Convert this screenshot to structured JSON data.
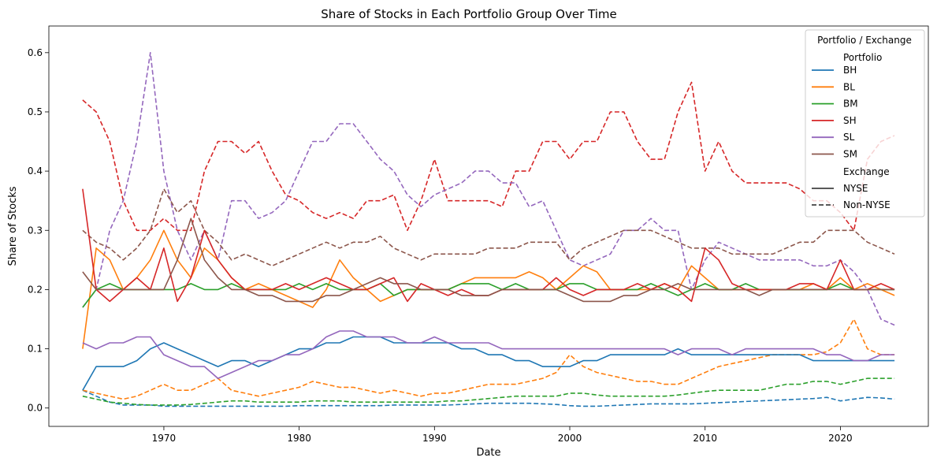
{
  "chart_data": {
    "type": "line",
    "title": "Share of Stocks in Each Portfolio Group Over Time",
    "xlabel": "Date",
    "ylabel": "Share of Stocks",
    "xlim": [
      1961.5,
      2026.5
    ],
    "ylim": [
      -0.031,
      0.645
    ],
    "x_ticks": [
      1970,
      1980,
      1990,
      2000,
      2010,
      2020
    ],
    "y_ticks": [
      0.0,
      0.1,
      0.2,
      0.3,
      0.4,
      0.5,
      0.6
    ],
    "y_tick_labels": [
      "0.0",
      "0.1",
      "0.2",
      "0.3",
      "0.4",
      "0.5",
      "0.6"
    ],
    "grid": false,
    "legend": {
      "placement": "top-right",
      "title": "Portfolio / Exchange",
      "portfolio_header": "Portfolio",
      "exchange_header": "Exchange",
      "exchange_entries": [
        {
          "name": "NYSE",
          "style": "solid"
        },
        {
          "name": "Non-NYSE",
          "style": "dashed"
        }
      ]
    },
    "x": [
      1964,
      1965,
      1966,
      1967,
      1968,
      1969,
      1970,
      1971,
      1972,
      1973,
      1974,
      1975,
      1976,
      1977,
      1978,
      1979,
      1980,
      1981,
      1982,
      1983,
      1984,
      1985,
      1986,
      1987,
      1988,
      1989,
      1990,
      1991,
      1992,
      1993,
      1994,
      1995,
      1996,
      1997,
      1998,
      1999,
      2000,
      2001,
      2002,
      2003,
      2004,
      2005,
      2006,
      2007,
      2008,
      2009,
      2010,
      2011,
      2012,
      2013,
      2014,
      2015,
      2016,
      2017,
      2018,
      2019,
      2020,
      2021,
      2022,
      2023,
      2024
    ],
    "series": [
      {
        "name": "BH",
        "exchange": "NYSE",
        "color": "#1f77b4",
        "style": "solid",
        "values": [
          0.03,
          0.07,
          0.07,
          0.07,
          0.08,
          0.1,
          0.11,
          0.1,
          0.09,
          0.08,
          0.07,
          0.08,
          0.08,
          0.07,
          0.08,
          0.09,
          0.1,
          0.1,
          0.11,
          0.11,
          0.12,
          0.12,
          0.12,
          0.11,
          0.11,
          0.11,
          0.11,
          0.11,
          0.1,
          0.1,
          0.09,
          0.09,
          0.08,
          0.08,
          0.07,
          0.07,
          0.07,
          0.08,
          0.08,
          0.09,
          0.09,
          0.09,
          0.09,
          0.09,
          0.1,
          0.09,
          0.09,
          0.09,
          0.09,
          0.09,
          0.09,
          0.09,
          0.09,
          0.09,
          0.08,
          0.08,
          0.08,
          0.08,
          0.08,
          0.08,
          0.08
        ]
      },
      {
        "name": "BH",
        "exchange": "Non-NYSE",
        "color": "#1f77b4",
        "style": "dashed",
        "values": [
          0.03,
          0.02,
          0.01,
          0.005,
          0.005,
          0.005,
          0.003,
          0.003,
          0.003,
          0.003,
          0.003,
          0.003,
          0.003,
          0.003,
          0.003,
          0.003,
          0.004,
          0.004,
          0.004,
          0.004,
          0.004,
          0.004,
          0.004,
          0.005,
          0.005,
          0.005,
          0.005,
          0.005,
          0.006,
          0.007,
          0.008,
          0.008,
          0.008,
          0.008,
          0.007,
          0.006,
          0.004,
          0.003,
          0.003,
          0.004,
          0.005,
          0.006,
          0.007,
          0.007,
          0.007,
          0.007,
          0.008,
          0.009,
          0.01,
          0.011,
          0.012,
          0.013,
          0.014,
          0.015,
          0.016,
          0.018,
          0.012,
          0.015,
          0.018,
          0.017,
          0.015
        ]
      },
      {
        "name": "BL",
        "exchange": "NYSE",
        "color": "#ff7f0e",
        "style": "solid",
        "values": [
          0.1,
          0.27,
          0.25,
          0.2,
          0.22,
          0.25,
          0.3,
          0.25,
          0.22,
          0.27,
          0.25,
          0.22,
          0.2,
          0.21,
          0.2,
          0.19,
          0.18,
          0.17,
          0.2,
          0.25,
          0.22,
          0.2,
          0.18,
          0.19,
          0.2,
          0.2,
          0.2,
          0.2,
          0.21,
          0.22,
          0.22,
          0.22,
          0.22,
          0.23,
          0.22,
          0.2,
          0.22,
          0.24,
          0.23,
          0.2,
          0.2,
          0.2,
          0.2,
          0.21,
          0.2,
          0.24,
          0.22,
          0.2,
          0.2,
          0.2,
          0.2,
          0.2,
          0.2,
          0.2,
          0.21,
          0.2,
          0.22,
          0.2,
          0.21,
          0.2,
          0.19
        ]
      },
      {
        "name": "BL",
        "exchange": "Non-NYSE",
        "color": "#ff7f0e",
        "style": "dashed",
        "values": [
          0.03,
          0.025,
          0.02,
          0.015,
          0.02,
          0.03,
          0.04,
          0.03,
          0.03,
          0.04,
          0.05,
          0.03,
          0.025,
          0.02,
          0.025,
          0.03,
          0.035,
          0.045,
          0.04,
          0.035,
          0.035,
          0.03,
          0.025,
          0.03,
          0.025,
          0.02,
          0.025,
          0.025,
          0.03,
          0.035,
          0.04,
          0.04,
          0.04,
          0.045,
          0.05,
          0.06,
          0.09,
          0.07,
          0.06,
          0.055,
          0.05,
          0.045,
          0.045,
          0.04,
          0.04,
          0.05,
          0.06,
          0.07,
          0.075,
          0.08,
          0.085,
          0.09,
          0.09,
          0.09,
          0.09,
          0.095,
          0.11,
          0.15,
          0.1,
          0.09,
          0.09
        ]
      },
      {
        "name": "BM",
        "exchange": "NYSE",
        "color": "#2ca02c",
        "style": "solid",
        "values": [
          0.17,
          0.2,
          0.21,
          0.2,
          0.2,
          0.2,
          0.2,
          0.2,
          0.21,
          0.2,
          0.2,
          0.21,
          0.2,
          0.2,
          0.2,
          0.2,
          0.21,
          0.2,
          0.21,
          0.2,
          0.2,
          0.2,
          0.21,
          0.19,
          0.2,
          0.2,
          0.2,
          0.2,
          0.21,
          0.21,
          0.21,
          0.2,
          0.21,
          0.2,
          0.2,
          0.2,
          0.21,
          0.21,
          0.2,
          0.2,
          0.2,
          0.2,
          0.21,
          0.2,
          0.19,
          0.2,
          0.21,
          0.2,
          0.2,
          0.21,
          0.2,
          0.2,
          0.2,
          0.2,
          0.2,
          0.2,
          0.21,
          0.2,
          0.2,
          0.2,
          0.2
        ]
      },
      {
        "name": "BM",
        "exchange": "Non-NYSE",
        "color": "#2ca02c",
        "style": "dashed",
        "values": [
          0.02,
          0.015,
          0.01,
          0.008,
          0.006,
          0.005,
          0.005,
          0.005,
          0.006,
          0.008,
          0.01,
          0.012,
          0.012,
          0.01,
          0.01,
          0.01,
          0.01,
          0.012,
          0.012,
          0.012,
          0.01,
          0.01,
          0.01,
          0.01,
          0.01,
          0.01,
          0.01,
          0.012,
          0.012,
          0.014,
          0.016,
          0.018,
          0.02,
          0.02,
          0.02,
          0.02,
          0.025,
          0.025,
          0.022,
          0.02,
          0.02,
          0.02,
          0.02,
          0.02,
          0.022,
          0.025,
          0.028,
          0.03,
          0.03,
          0.03,
          0.03,
          0.035,
          0.04,
          0.04,
          0.045,
          0.045,
          0.04,
          0.045,
          0.05,
          0.05,
          0.05
        ]
      },
      {
        "name": "SH",
        "exchange": "NYSE",
        "color": "#d62728",
        "style": "solid",
        "values": [
          0.37,
          0.2,
          0.18,
          0.2,
          0.22,
          0.2,
          0.27,
          0.18,
          0.22,
          0.3,
          0.25,
          0.22,
          0.2,
          0.2,
          0.2,
          0.21,
          0.2,
          0.21,
          0.22,
          0.21,
          0.2,
          0.2,
          0.21,
          0.22,
          0.18,
          0.21,
          0.2,
          0.19,
          0.2,
          0.19,
          0.19,
          0.2,
          0.2,
          0.2,
          0.2,
          0.22,
          0.2,
          0.19,
          0.2,
          0.2,
          0.2,
          0.21,
          0.2,
          0.21,
          0.2,
          0.18,
          0.27,
          0.25,
          0.21,
          0.2,
          0.2,
          0.2,
          0.2,
          0.21,
          0.21,
          0.2,
          0.25,
          0.2,
          0.2,
          0.21,
          0.2
        ]
      },
      {
        "name": "SH",
        "exchange": "Non-NYSE",
        "color": "#d62728",
        "style": "dashed",
        "values": [
          0.52,
          0.5,
          0.45,
          0.35,
          0.3,
          0.3,
          0.32,
          0.3,
          0.3,
          0.4,
          0.45,
          0.45,
          0.43,
          0.45,
          0.4,
          0.36,
          0.35,
          0.33,
          0.32,
          0.33,
          0.32,
          0.35,
          0.35,
          0.36,
          0.3,
          0.35,
          0.42,
          0.35,
          0.35,
          0.35,
          0.35,
          0.34,
          0.4,
          0.4,
          0.45,
          0.45,
          0.42,
          0.45,
          0.45,
          0.5,
          0.5,
          0.45,
          0.42,
          0.42,
          0.5,
          0.55,
          0.4,
          0.45,
          0.4,
          0.38,
          0.38,
          0.38,
          0.38,
          0.37,
          0.35,
          0.35,
          0.33,
          0.3,
          0.42,
          0.45,
          0.46
        ]
      },
      {
        "name": "SL",
        "exchange": "NYSE",
        "color": "#9467bd",
        "style": "solid",
        "values": [
          0.11,
          0.1,
          0.11,
          0.11,
          0.12,
          0.12,
          0.09,
          0.08,
          0.07,
          0.07,
          0.05,
          0.06,
          0.07,
          0.08,
          0.08,
          0.09,
          0.09,
          0.1,
          0.12,
          0.13,
          0.13,
          0.12,
          0.12,
          0.12,
          0.11,
          0.11,
          0.12,
          0.11,
          0.11,
          0.11,
          0.11,
          0.1,
          0.1,
          0.1,
          0.1,
          0.1,
          0.1,
          0.1,
          0.1,
          0.1,
          0.1,
          0.1,
          0.1,
          0.1,
          0.09,
          0.1,
          0.1,
          0.1,
          0.09,
          0.1,
          0.1,
          0.1,
          0.1,
          0.1,
          0.1,
          0.09,
          0.09,
          0.08,
          0.08,
          0.09,
          0.09
        ]
      },
      {
        "name": "SL",
        "exchange": "Non-NYSE",
        "color": "#9467bd",
        "style": "dashed",
        "values": [
          0.17,
          0.2,
          0.3,
          0.35,
          0.45,
          0.6,
          0.4,
          0.3,
          0.25,
          0.3,
          0.25,
          0.35,
          0.35,
          0.32,
          0.33,
          0.35,
          0.4,
          0.45,
          0.45,
          0.48,
          0.48,
          0.45,
          0.42,
          0.4,
          0.36,
          0.34,
          0.36,
          0.37,
          0.38,
          0.4,
          0.4,
          0.38,
          0.38,
          0.34,
          0.35,
          0.3,
          0.25,
          0.24,
          0.25,
          0.26,
          0.3,
          0.3,
          0.32,
          0.3,
          0.3,
          0.2,
          0.25,
          0.28,
          0.27,
          0.26,
          0.25,
          0.25,
          0.25,
          0.25,
          0.24,
          0.24,
          0.25,
          0.23,
          0.2,
          0.15,
          0.14
        ]
      },
      {
        "name": "SM",
        "exchange": "NYSE",
        "color": "#8c564b",
        "style": "solid",
        "values": [
          0.23,
          0.2,
          0.2,
          0.2,
          0.2,
          0.2,
          0.2,
          0.25,
          0.32,
          0.25,
          0.22,
          0.2,
          0.2,
          0.19,
          0.19,
          0.18,
          0.18,
          0.18,
          0.19,
          0.19,
          0.2,
          0.21,
          0.22,
          0.21,
          0.21,
          0.2,
          0.2,
          0.2,
          0.19,
          0.19,
          0.19,
          0.2,
          0.2,
          0.2,
          0.2,
          0.2,
          0.19,
          0.18,
          0.18,
          0.18,
          0.19,
          0.19,
          0.2,
          0.2,
          0.21,
          0.2,
          0.2,
          0.2,
          0.2,
          0.2,
          0.19,
          0.2,
          0.2,
          0.2,
          0.2,
          0.2,
          0.2,
          0.2,
          0.2,
          0.2,
          0.2
        ]
      },
      {
        "name": "SM",
        "exchange": "Non-NYSE",
        "color": "#8c564b",
        "style": "dashed",
        "values": [
          0.3,
          0.28,
          0.27,
          0.25,
          0.27,
          0.3,
          0.37,
          0.33,
          0.35,
          0.3,
          0.28,
          0.25,
          0.26,
          0.25,
          0.24,
          0.25,
          0.26,
          0.27,
          0.28,
          0.27,
          0.28,
          0.28,
          0.29,
          0.27,
          0.26,
          0.25,
          0.26,
          0.26,
          0.26,
          0.26,
          0.27,
          0.27,
          0.27,
          0.28,
          0.28,
          0.28,
          0.25,
          0.27,
          0.28,
          0.29,
          0.3,
          0.3,
          0.3,
          0.29,
          0.28,
          0.27,
          0.27,
          0.27,
          0.26,
          0.26,
          0.26,
          0.26,
          0.27,
          0.28,
          0.28,
          0.3,
          0.3,
          0.3,
          0.28,
          0.27,
          0.26
        ]
      }
    ]
  }
}
